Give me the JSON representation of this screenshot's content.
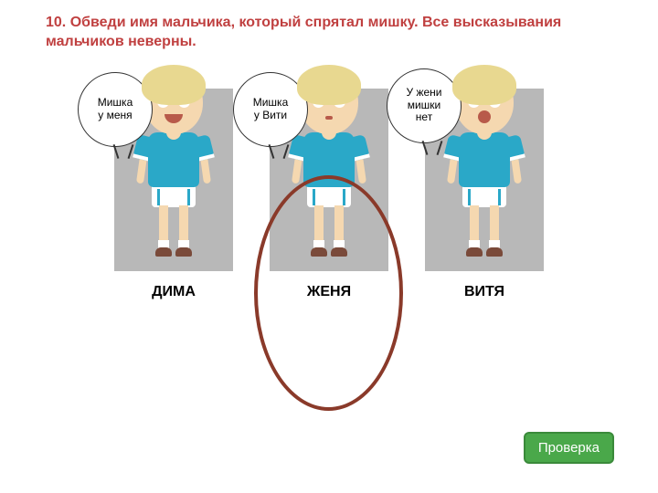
{
  "title": "10. Обведи имя мальчика, который спрятал мишку. Все высказывания мальчиков неверны.",
  "boys": [
    {
      "name": "ДИМА",
      "speechL1": "Мишка",
      "speechL2": "у меня"
    },
    {
      "name": "ЖЕНЯ",
      "speechL1": "Мишка",
      "speechL2": "у Вити"
    },
    {
      "name": "ВИТЯ",
      "speechL1": "У жени",
      "speechL2": "мишки",
      "speechL3": "нет"
    }
  ],
  "answer_index": 1,
  "button": "Проверка",
  "colors": {
    "title": "#c04040",
    "card_bg": "#b8b8b8",
    "shirt": "#2aa8c8",
    "skin": "#f5d8b0",
    "hair": "#e8d890",
    "circle": "#8a3a2a",
    "button_bg": "#4aa84a",
    "button_border": "#3a8a3a"
  }
}
